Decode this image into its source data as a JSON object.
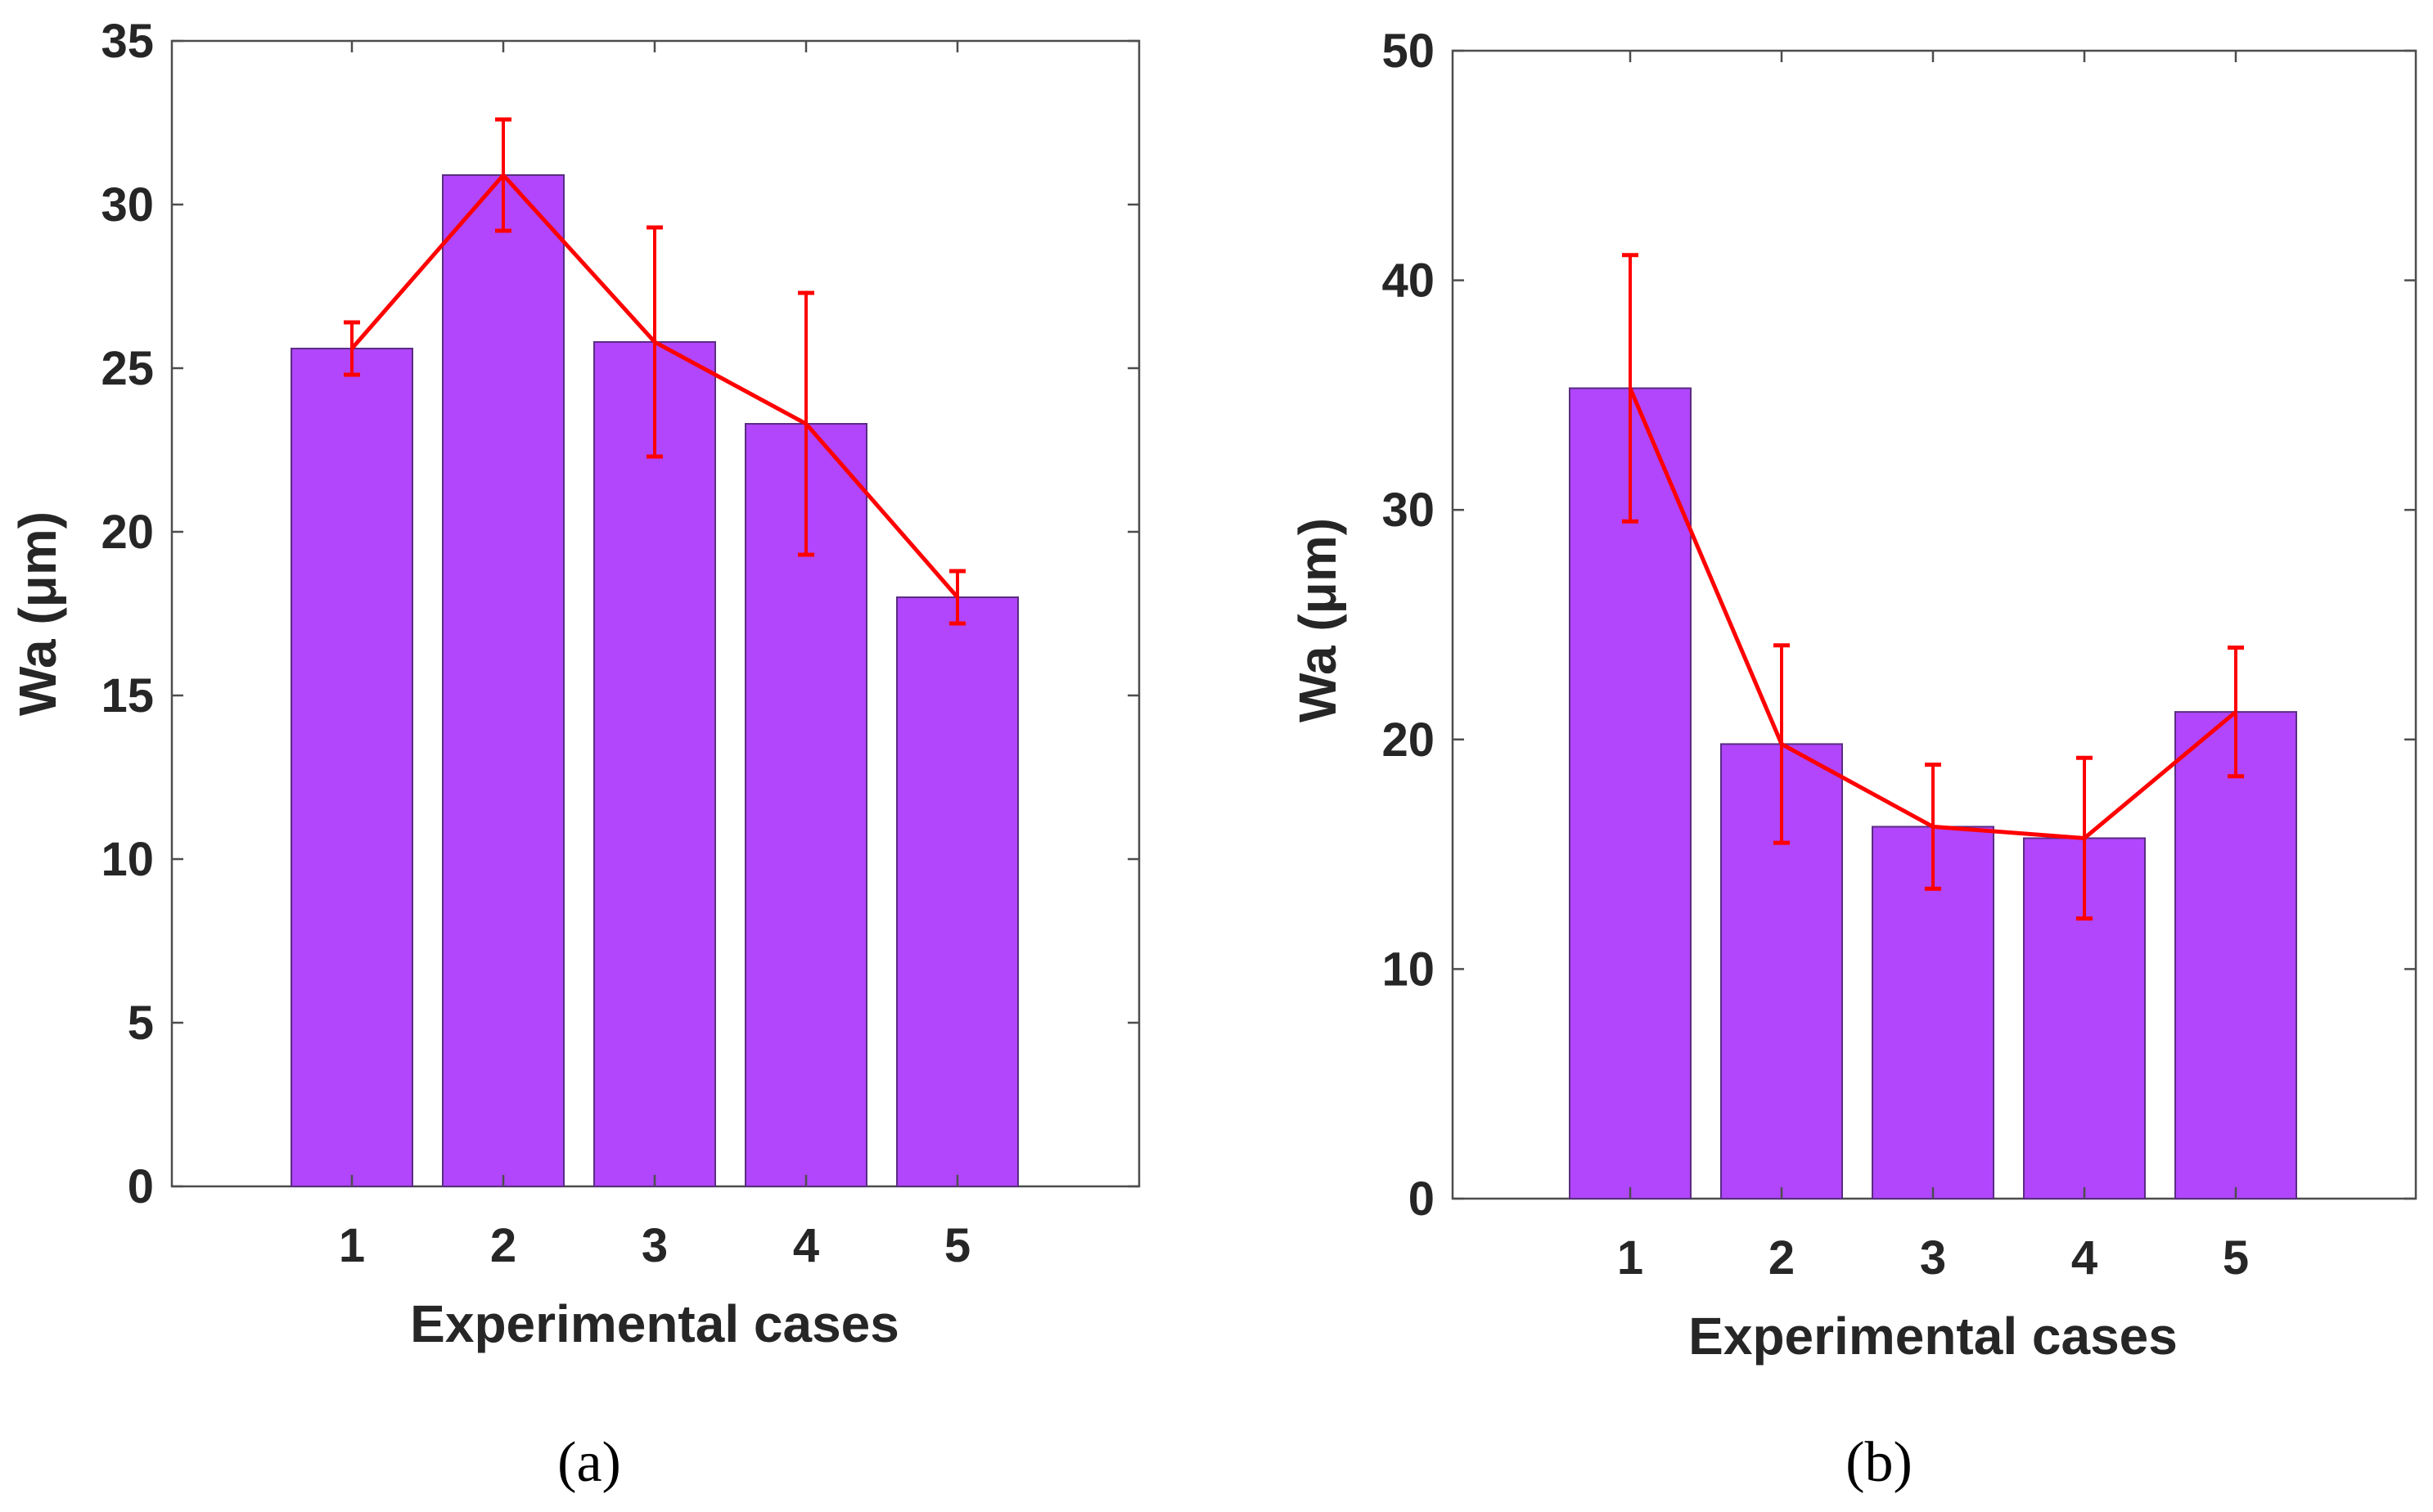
{
  "colors": {
    "bar_fill": "#b146fc",
    "bar_edge": "#5a2d82",
    "line": "#ff0000",
    "axis": "#4d4d4d",
    "text": "#262626"
  },
  "chart_data": [
    {
      "id": "a",
      "type": "bar",
      "caption": "(a)",
      "xlabel": "Experimental cases",
      "ylabel": "Wa (μm)",
      "categories": [
        "1",
        "2",
        "3",
        "4",
        "5"
      ],
      "values": [
        25.6,
        30.9,
        25.8,
        23.3,
        18.0
      ],
      "error": [
        0.8,
        1.7,
        3.5,
        4.0,
        0.8
      ],
      "line_overlay": true,
      "ylim": [
        0,
        35
      ],
      "yticks": [
        0,
        5,
        10,
        15,
        20,
        25,
        30,
        35
      ],
      "ytick_labels": [
        "0",
        "5",
        "10",
        "15",
        "20",
        "25",
        "30",
        "35"
      ]
    },
    {
      "id": "b",
      "type": "bar",
      "caption": "(b)",
      "xlabel": "Experimental cases",
      "ylabel": "Wa (μm)",
      "categories": [
        "1",
        "2",
        "3",
        "4",
        "5"
      ],
      "values": [
        35.3,
        19.8,
        16.2,
        15.7,
        21.2
      ],
      "error": [
        5.8,
        4.3,
        2.7,
        3.5,
        2.8
      ],
      "line_overlay": true,
      "ylim": [
        0,
        50
      ],
      "yticks": [
        0,
        10,
        20,
        30,
        40,
        50
      ],
      "ytick_labels": [
        "0",
        "10",
        "20",
        "30",
        "40",
        "50"
      ]
    }
  ]
}
